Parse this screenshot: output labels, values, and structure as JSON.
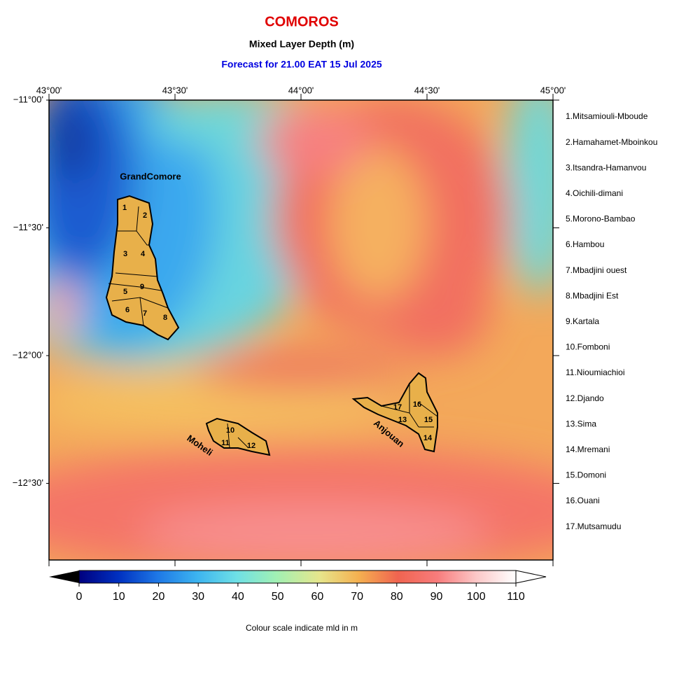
{
  "title": "COMOROS",
  "subtitle": "Mixed Layer Depth (m)",
  "forecast": "Forecast for  21.00 EAT 15 Jul 2025",
  "map": {
    "lon_range": [
      43,
      45
    ],
    "lat_range": [
      -11,
      -12.8
    ],
    "lon_ticks": [
      {
        "value": 43,
        "label": "43°00'"
      },
      {
        "value": 43.5,
        "label": "43°30'"
      },
      {
        "value": 44,
        "label": "44°00'"
      },
      {
        "value": 44.5,
        "label": "44°30'"
      },
      {
        "value": 45,
        "label": "45°00'"
      }
    ],
    "lat_ticks": [
      {
        "value": -11,
        "label": "−11°00'"
      },
      {
        "value": -11.5,
        "label": "−11°30'"
      },
      {
        "value": -12,
        "label": "−12°00'"
      },
      {
        "value": -12.5,
        "label": "−12°30'"
      }
    ],
    "islands": [
      "GrandComore",
      "Moheli",
      "Anjouan"
    ],
    "district_numbers": [
      1,
      2,
      3,
      4,
      5,
      6,
      7,
      8,
      9,
      10,
      11,
      12,
      13,
      14,
      15,
      16,
      17
    ]
  },
  "districts": [
    "1.Mitsamiouli-Mboude",
    "2.Hamahamet-Mboinkou",
    "3.Itsandra-Hamanvou",
    "4.Oichili-dimani",
    "5.Morono-Bambao",
    "6.Hambou",
    "7.Mbadjini ouest",
    "8.Mbadjini Est",
    "9.Kartala",
    "10.Fomboni",
    "11.Nioumiachioi",
    "12.Djando",
    "13.Sima",
    "14.Mremani",
    "15.Domoni",
    "16.Ouani",
    "17.Mutsamudu"
  ],
  "colorbar": {
    "range": [
      0,
      110
    ],
    "ticks": [
      0,
      10,
      20,
      30,
      40,
      50,
      60,
      70,
      80,
      90,
      100,
      110
    ],
    "label": "Colour scale indicate mld in m"
  }
}
